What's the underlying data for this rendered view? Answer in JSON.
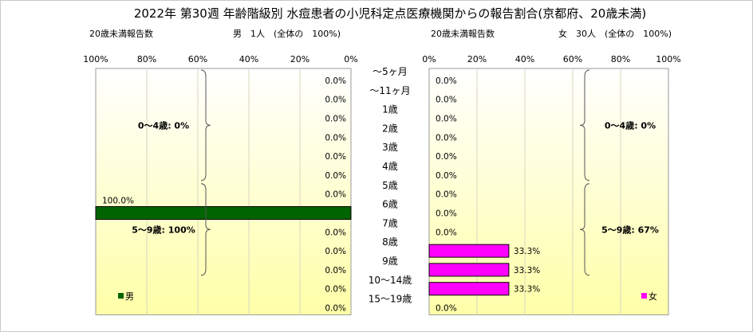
{
  "title": "2022年 第30週 年齢階級別 水痘患者の小児科定点医療機関からの報告割合(京都府、20歳未満)",
  "chart_data": [
    {
      "type": "bar",
      "side": "left",
      "subtitle_left": "20歳未満報告数",
      "subtitle_right": "男　1人　(全体の　100%)",
      "xlim": [
        0,
        100
      ],
      "axis_direction": "reversed",
      "ticks": [
        "100%",
        "80%",
        "60%",
        "40%",
        "20%",
        "0%"
      ],
      "categories": [
        "～5ヶ月",
        "～11ヶ月",
        "1歳",
        "2歳",
        "3歳",
        "4歳",
        "5歳",
        "6歳",
        "7歳",
        "8歳",
        "9歳",
        "10～14歳",
        "15～19歳"
      ],
      "series": [
        {
          "name": "男",
          "color": "#006400",
          "values": [
            0,
            0,
            0,
            0,
            0,
            0,
            0,
            100,
            0,
            0,
            0,
            0,
            0
          ],
          "labels": [
            "0.0%",
            "0.0%",
            "0.0%",
            "0.0%",
            "0.0%",
            "0.0%",
            "0.0%",
            "100.0%",
            "0.0%",
            "0.0%",
            "0.0%",
            "0.0%",
            "0.0%"
          ]
        }
      ],
      "annotations": [
        {
          "text": "0～4歳: 0%",
          "from": 0,
          "to": 5
        },
        {
          "text": "5～9歳: 100%",
          "from": 6,
          "to": 10
        }
      ],
      "legend": "bottom-left",
      "background": "yellow-gradient",
      "grid": true
    },
    {
      "type": "bar",
      "side": "right",
      "subtitle_left": "20歳未満報告数",
      "subtitle_right": "女　30人　(全体の　100%)",
      "xlim": [
        0,
        100
      ],
      "ticks": [
        "0%",
        "20%",
        "40%",
        "60%",
        "80%",
        "100%"
      ],
      "categories": [
        "～5ヶ月",
        "～11ヶ月",
        "1歳",
        "2歳",
        "3歳",
        "4歳",
        "5歳",
        "6歳",
        "7歳",
        "8歳",
        "9歳",
        "10～14歳",
        "15～19歳"
      ],
      "series": [
        {
          "name": "女",
          "color": "#ff00ff",
          "values": [
            0,
            0,
            0,
            0,
            0,
            0,
            0,
            0,
            0,
            33.3,
            33.3,
            33.3,
            0
          ],
          "labels": [
            "0.0%",
            "0.0%",
            "0.0%",
            "0.0%",
            "0.0%",
            "0.0%",
            "0.0%",
            "0.0%",
            "0.0%",
            "33.3%",
            "33.3%",
            "33.3%",
            "0.0%"
          ]
        }
      ],
      "annotations": [
        {
          "text": "0～4歳: 0%",
          "from": 0,
          "to": 5
        },
        {
          "text": "5～9歳: 67%",
          "from": 6,
          "to": 10
        }
      ],
      "legend": "bottom-right",
      "background": "yellow-gradient",
      "grid": true
    }
  ]
}
